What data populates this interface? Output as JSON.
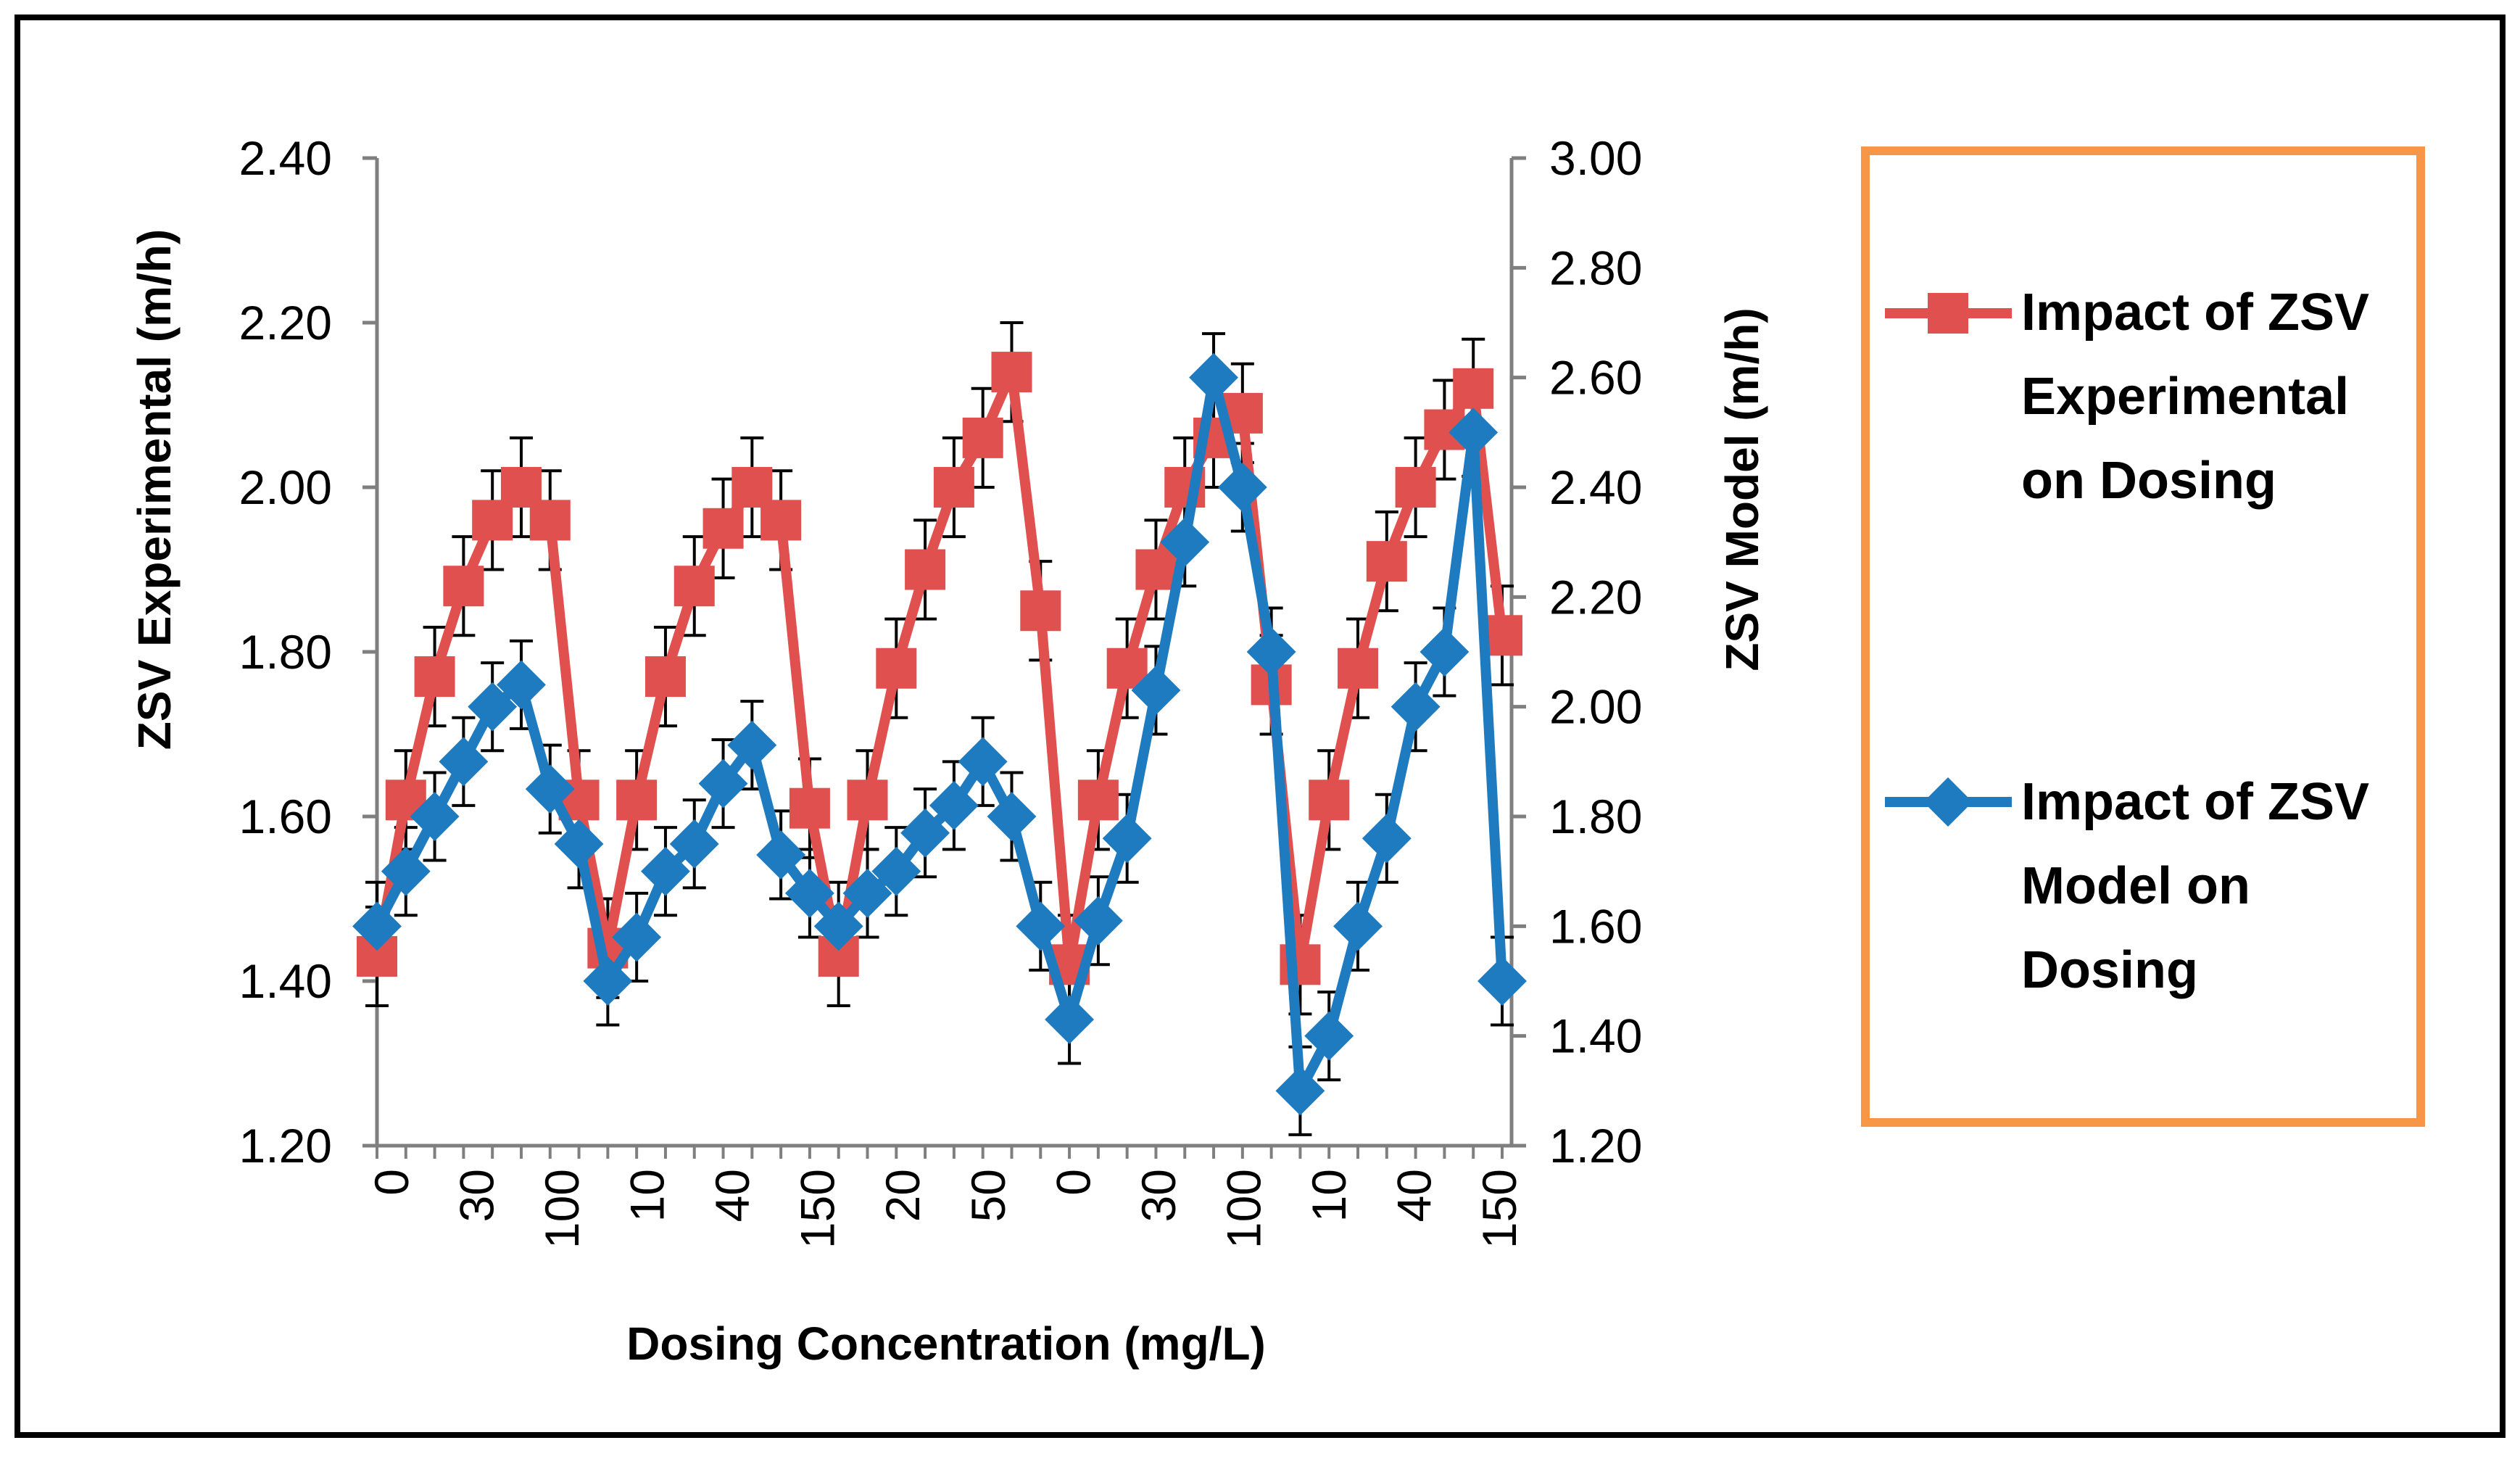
{
  "chart_data": {
    "type": "line",
    "title": "",
    "xlabel": "Dosing Concentration (mg/L)",
    "ylabel": "ZSV Experimental (m/h)",
    "y2label": "ZSV Model (m/h)",
    "ylim": [
      1.2,
      2.4
    ],
    "y2lim": [
      1.2,
      3.0
    ],
    "yticks": [
      "1.20",
      "1.40",
      "1.60",
      "1.80",
      "2.00",
      "2.20",
      "2.40"
    ],
    "y2ticks": [
      "1.20",
      "1.40",
      "1.60",
      "1.80",
      "2.00",
      "2.20",
      "2.40",
      "2.60",
      "2.80",
      "3.00"
    ],
    "categories": [
      "0",
      "10",
      "20",
      "30",
      "40",
      "50",
      "100",
      "150",
      "0",
      "10",
      "20",
      "30",
      "40",
      "50",
      "100",
      "150",
      "0",
      "10",
      "20",
      "30",
      "40",
      "50",
      "100",
      "150",
      "0",
      "10",
      "20",
      "30",
      "40",
      "50",
      "100",
      "150",
      "0",
      "10",
      "20",
      "30",
      "40",
      "50",
      "100",
      "150"
    ],
    "visible_tick_labels": [
      "0",
      "30",
      "100",
      "10",
      "40",
      "150",
      "20",
      "50",
      "0",
      "30",
      "100",
      "10",
      "40",
      "150"
    ],
    "legend_position": "right",
    "series": [
      {
        "name": "Impact of ZSV Experimental on Dosing",
        "axis": "left",
        "color": "#E0504E",
        "marker": "square",
        "error": 0.06,
        "values": [
          1.43,
          1.62,
          1.77,
          1.88,
          1.96,
          2.0,
          1.96,
          1.62,
          1.44,
          1.62,
          1.77,
          1.88,
          1.95,
          2.0,
          1.96,
          1.61,
          1.43,
          1.62,
          1.78,
          1.9,
          2.0,
          2.06,
          2.14,
          1.85,
          1.42,
          1.62,
          1.78,
          1.9,
          2.0,
          2.06,
          2.09,
          1.76,
          1.42,
          1.62,
          1.78,
          1.91,
          2.0,
          2.07,
          2.12,
          1.82
        ]
      },
      {
        "name": "Impact of ZSV Model on Dosing",
        "axis": "right",
        "color": "#1F7BBF",
        "marker": "diamond",
        "error": 0.08,
        "values": [
          1.6,
          1.7,
          1.8,
          1.9,
          2.0,
          2.04,
          1.85,
          1.75,
          1.5,
          1.58,
          1.7,
          1.75,
          1.86,
          1.93,
          1.73,
          1.66,
          1.6,
          1.66,
          1.7,
          1.77,
          1.82,
          1.9,
          1.8,
          1.6,
          1.43,
          1.61,
          1.76,
          2.03,
          2.3,
          2.6,
          2.4,
          2.1,
          1.3,
          1.4,
          1.6,
          1.76,
          2.0,
          2.1,
          2.5,
          1.5
        ]
      }
    ]
  },
  "legend": {
    "experimental_lines": [
      "Impact of ZSV",
      "Experimental",
      "on Dosing"
    ],
    "model_lines": [
      "Impact of ZSV",
      "Model on",
      "Dosing"
    ]
  }
}
